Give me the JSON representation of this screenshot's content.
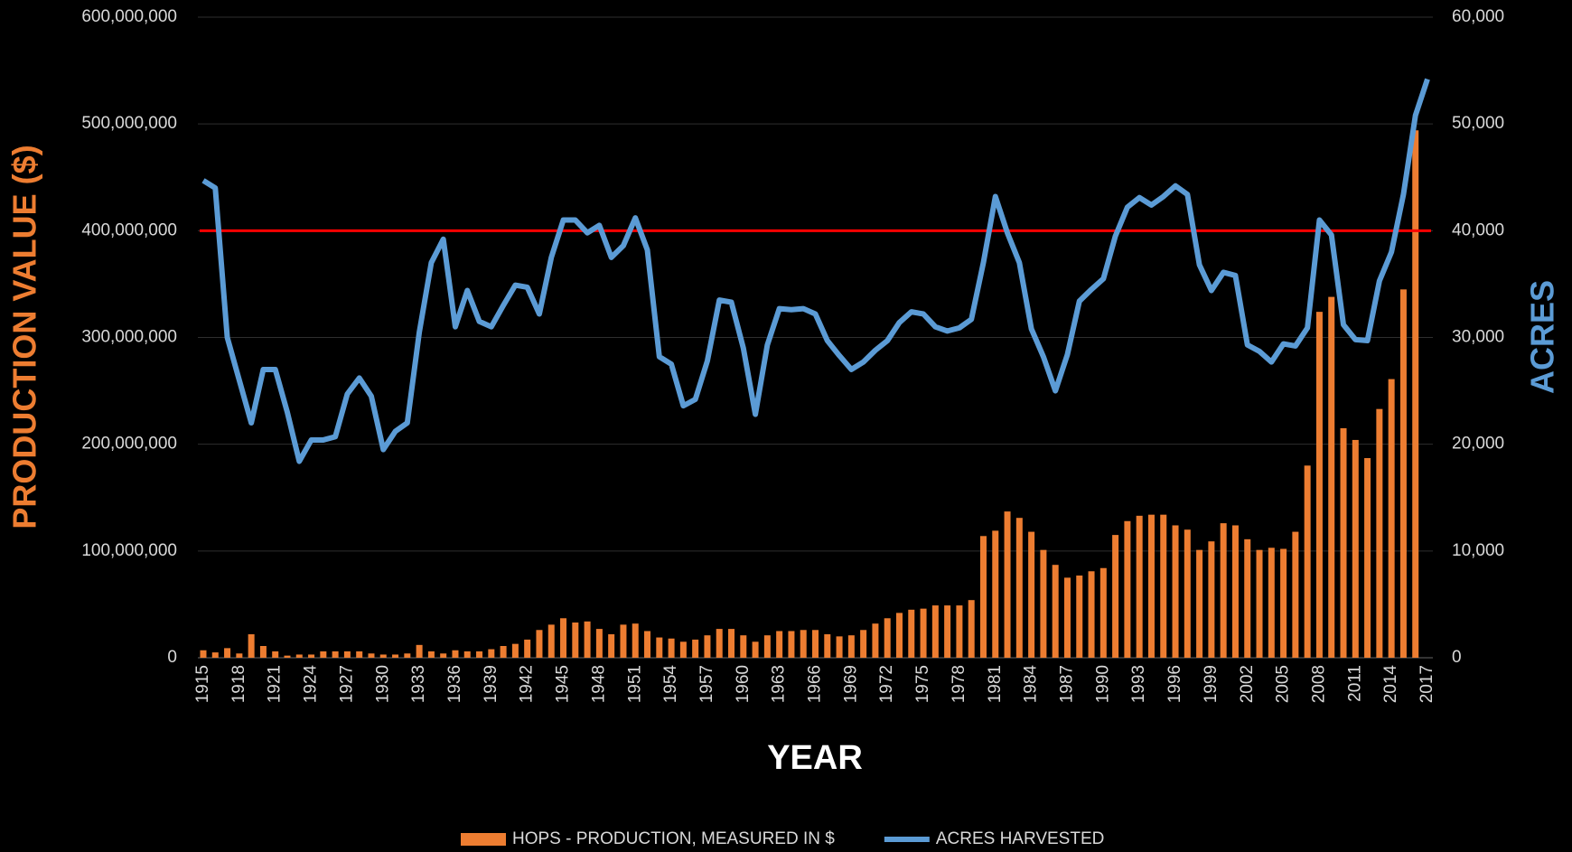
{
  "chart_data": {
    "type": "bar_line",
    "x_label": "YEAR",
    "y_label": "PRODUCTION VALUE ($)",
    "y2_label": "ACRES",
    "categories": [
      "1915",
      null,
      null,
      "1918",
      null,
      null,
      "1921",
      null,
      null,
      "1924",
      null,
      null,
      "1927",
      null,
      null,
      "1930",
      null,
      null,
      "1933",
      null,
      null,
      "1936",
      null,
      null,
      "1939",
      null,
      null,
      "1942",
      null,
      null,
      "1945",
      null,
      null,
      "1948",
      null,
      null,
      "1951",
      null,
      null,
      "1954",
      null,
      null,
      "1957",
      null,
      null,
      "1960",
      null,
      null,
      "1963",
      null,
      null,
      "1966",
      null,
      null,
      "1969",
      null,
      null,
      "1972",
      null,
      null,
      "1975",
      null,
      null,
      "1978",
      null,
      null,
      "1981",
      null,
      null,
      "1984",
      null,
      null,
      "1987",
      null,
      null,
      "1990",
      null,
      null,
      "1993",
      null,
      null,
      "1996",
      null,
      null,
      "1999",
      null,
      null,
      "2002",
      null,
      null,
      "2005",
      null,
      null,
      "2008",
      null,
      null,
      "2011",
      null,
      null,
      "2014",
      null,
      null,
      "2017"
    ],
    "series": [
      {
        "name": "HOPS - PRODUCTION, MEASURED IN $",
        "type": "bar",
        "color": "#ed7d31",
        "values": [
          7000000,
          5000000,
          9000000,
          4000000,
          22000000,
          11000000,
          6000000,
          2000000,
          3000000,
          3000000,
          6000000,
          6000000,
          6000000,
          6000000,
          4000000,
          3000000,
          3000000,
          4000000,
          12000000,
          6000000,
          4000000,
          7000000,
          6000000,
          6000000,
          8000000,
          11000000,
          13000000,
          17000000,
          26000000,
          31000000,
          37000000,
          33000000,
          34000000,
          27000000,
          22000000,
          31000000,
          32000000,
          25000000,
          19000000,
          18000000,
          15000000,
          17000000,
          21000000,
          27000000,
          27000000,
          21000000,
          15000000,
          21000000,
          25000000,
          25000000,
          26000000,
          26000000,
          22000000,
          20000000,
          21000000,
          26000000,
          32000000,
          37000000,
          42000000,
          45000000,
          46000000,
          49000000,
          49000000,
          49000000,
          54000000,
          114000000,
          119000000,
          137000000,
          131000000,
          118000000,
          101000000,
          87000000,
          75000000,
          77000000,
          81000000,
          84000000,
          115000000,
          128000000,
          133000000,
          134000000,
          134000000,
          124000000,
          120000000,
          101000000,
          109000000,
          126000000,
          124000000,
          111000000,
          101000000,
          103000000,
          102000000,
          118000000,
          180000000,
          324000000,
          338000000,
          215000000,
          204000000,
          187000000,
          233000000,
          261000000,
          345000000,
          494000000,
          null
        ]
      },
      {
        "name": "ACRES HARVESTED",
        "type": "line",
        "axis": "y2",
        "color": "#5b9bd5",
        "values": [
          44700,
          44000,
          30000,
          26000,
          22000,
          27000,
          27000,
          23000,
          18400,
          20400,
          20400,
          20700,
          24700,
          26200,
          24500,
          19500,
          21200,
          22000,
          30500,
          37000,
          39200,
          31000,
          34400,
          31500,
          31000,
          33000,
          34900,
          34700,
          32200,
          37500,
          41000,
          41000,
          39800,
          40500,
          37500,
          38600,
          41200,
          38200,
          28200,
          27500,
          23600,
          24200,
          27800,
          33500,
          33300,
          29000,
          22800,
          29300,
          32700,
          32600,
          32700,
          32200,
          29700,
          28300,
          27000,
          27700,
          28800,
          29700,
          31400,
          32400,
          32200,
          31000,
          30600,
          30900,
          31700,
          37000,
          43200,
          39800,
          37000,
          30800,
          28200,
          25000,
          28400,
          33400,
          34500,
          35500,
          39500,
          42200,
          43100,
          42400,
          43200,
          44200,
          43400,
          36800,
          34400,
          36100,
          35800,
          29300,
          28700,
          27700,
          29400,
          29200,
          30900,
          41000,
          39600,
          31200,
          29800,
          29700,
          35300,
          38000,
          43400,
          50800,
          54200
        ]
      }
    ],
    "ylim": [
      0,
      600000000
    ],
    "yticks": [
      0,
      {
        "value": 100000000,
        "label": "100,000,000"
      },
      {
        "value": 200000000,
        "label": "200,000,000"
      },
      {
        "value": 300000000,
        "label": "300,000,000"
      },
      {
        "value": 400000000,
        "label": "400,000,000"
      },
      {
        "value": 500000000,
        "label": "500,000,000"
      },
      {
        "value": 600000000,
        "label": "600,000,000"
      }
    ],
    "y2lim": [
      0,
      60000
    ],
    "y2ticks": [
      0,
      {
        "value": 10000,
        "label": "10,000"
      },
      {
        "value": 20000,
        "label": "20,000"
      },
      {
        "value": 30000,
        "label": "30,000"
      },
      {
        "value": 40000,
        "label": "40,000"
      },
      {
        "value": 50000,
        "label": "50,000"
      },
      {
        "value": 60000,
        "label": "60,000"
      }
    ],
    "reference_line": {
      "value": 400000000,
      "color": "#ff0000"
    },
    "grid": true,
    "legend": "bottom"
  }
}
